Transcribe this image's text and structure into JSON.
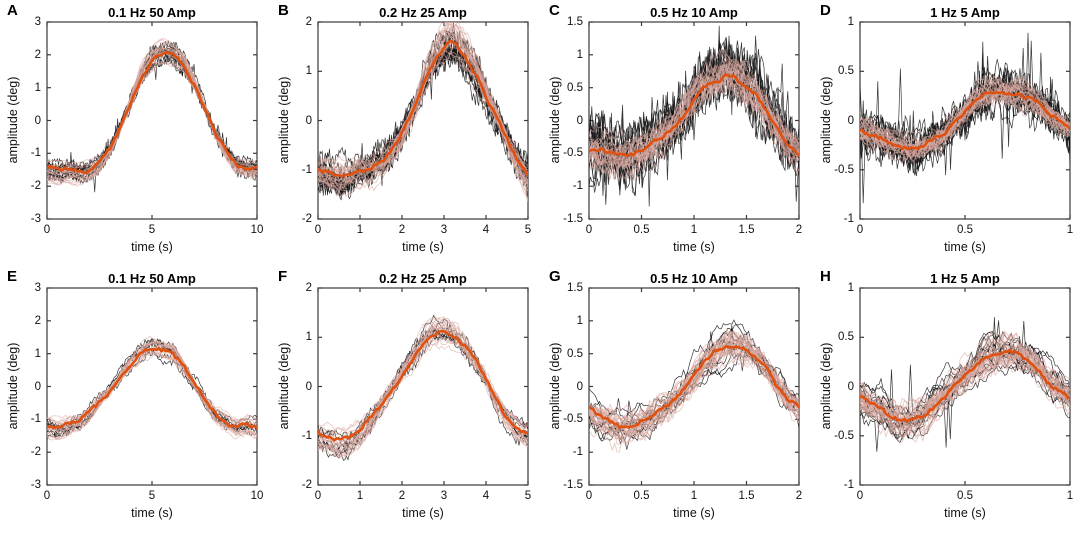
{
  "figure": {
    "background": "#ffffff",
    "rows": 2,
    "cols": 4
  },
  "colors": {
    "mean_line": "#e0500f",
    "band_trace": "#d9a8a0",
    "trial_trace": "#141414",
    "axis": "#3a3a3a",
    "tick_text": "#111111"
  },
  "chart_data": [
    {
      "type": "line",
      "panel": "A",
      "title": "0.1 Hz 50 Amp",
      "xlabel": "time (s)",
      "ylabel": "amplitude (deg)",
      "xlim": [
        0,
        10
      ],
      "ylim": [
        -3,
        3
      ],
      "xticks": [
        0,
        5,
        10
      ],
      "yticks": [
        -3,
        -2,
        -1,
        0,
        1,
        2,
        3
      ],
      "legend": null,
      "grid": false,
      "mean": {
        "t": [
          0,
          0.5,
          1,
          1.5,
          2,
          2.5,
          3,
          3.5,
          4,
          4.5,
          5,
          5.5,
          6,
          6.5,
          7,
          7.5,
          8,
          8.5,
          9,
          9.5,
          10
        ],
        "y": [
          -1.5,
          -1.55,
          -1.5,
          -1.55,
          -1.5,
          -1.3,
          -0.85,
          -0.2,
          0.6,
          1.35,
          1.8,
          2.0,
          1.95,
          1.7,
          1.1,
          0.4,
          -0.4,
          -0.9,
          -1.3,
          -1.4,
          -1.45
        ]
      },
      "trials": {
        "n_black": 10,
        "black_sd": 0.12,
        "jag": 1.0,
        "npts": 220,
        "spike_prob": 0.02,
        "spike_amp": 0.45,
        "n_pink": 20,
        "pink_sd": 0.09
      }
    },
    {
      "type": "line",
      "panel": "B",
      "title": "0.2 Hz 25 Amp",
      "xlabel": "time (s)",
      "ylabel": "amplitude (deg)",
      "xlim": [
        0,
        5
      ],
      "ylim": [
        -2,
        2
      ],
      "xticks": [
        0,
        1,
        2,
        3,
        4,
        5
      ],
      "yticks": [
        -2,
        -1,
        0,
        1,
        2
      ],
      "legend": null,
      "grid": false,
      "mean": {
        "t": [
          0,
          0.25,
          0.5,
          0.75,
          1,
          1.25,
          1.5,
          1.75,
          2,
          2.25,
          2.5,
          2.75,
          3,
          3.1,
          3.25,
          3.5,
          3.75,
          4,
          4.25,
          4.5,
          4.75,
          5
        ],
        "y": [
          -1.0,
          -1.05,
          -1.1,
          -1.1,
          -1.0,
          -0.95,
          -0.85,
          -0.6,
          -0.3,
          0.15,
          0.7,
          1.2,
          1.5,
          1.6,
          1.55,
          1.3,
          0.95,
          0.5,
          0.1,
          -0.4,
          -0.8,
          -1.15
        ]
      },
      "trials": {
        "n_black": 12,
        "black_sd": 0.22,
        "jag": 0.9,
        "npts": 200,
        "spike_prob": 0.01,
        "spike_amp": 0.4,
        "n_pink": 25,
        "pink_sd": 0.16
      }
    },
    {
      "type": "line",
      "panel": "C",
      "title": "0.5 Hz 10 Amp",
      "xlabel": "time (s)",
      "ylabel": "amplitude (deg)",
      "xlim": [
        0,
        2
      ],
      "ylim": [
        -1.5,
        1.5
      ],
      "xticks": [
        0,
        0.5,
        1,
        1.5,
        2
      ],
      "yticks": [
        -1.5,
        -1,
        -0.5,
        0,
        0.5,
        1,
        1.5
      ],
      "legend": null,
      "grid": false,
      "mean": {
        "t": [
          0,
          0.2,
          0.35,
          0.5,
          0.65,
          0.8,
          0.95,
          1.05,
          1.15,
          1.25,
          1.3,
          1.4,
          1.5,
          1.6,
          1.7,
          1.8,
          1.9,
          2
        ],
        "y": [
          -0.45,
          -0.5,
          -0.55,
          -0.45,
          -0.3,
          -0.1,
          0.2,
          0.45,
          0.55,
          0.6,
          0.7,
          0.65,
          0.5,
          0.35,
          0.1,
          -0.15,
          -0.35,
          -0.5
        ]
      },
      "trials": {
        "n_black": 12,
        "black_sd": 0.3,
        "jag": 1.0,
        "npts": 150,
        "spike_prob": 0.04,
        "spike_amp": 0.6,
        "n_pink": 26,
        "pink_sd": 0.2
      }
    },
    {
      "type": "line",
      "panel": "D",
      "title": "1 Hz 5 Amp",
      "xlabel": "time (s)",
      "ylabel": "amplitude (deg)",
      "xlim": [
        0,
        1
      ],
      "ylim": [
        -1,
        1
      ],
      "xticks": [
        0,
        0.5,
        1
      ],
      "yticks": [
        -1,
        -0.5,
        0,
        0.5,
        1
      ],
      "legend": null,
      "grid": false,
      "mean": {
        "t": [
          0,
          0.1,
          0.2,
          0.25,
          0.3,
          0.4,
          0.45,
          0.5,
          0.55,
          0.6,
          0.65,
          0.7,
          0.75,
          0.8,
          0.85,
          0.9,
          0.95,
          1
        ],
        "y": [
          -0.08,
          -0.18,
          -0.28,
          -0.3,
          -0.28,
          -0.15,
          -0.02,
          0.1,
          0.22,
          0.28,
          0.3,
          0.28,
          0.28,
          0.22,
          0.15,
          0.05,
          -0.02,
          -0.08
        ]
      },
      "trials": {
        "n_black": 14,
        "black_sd": 0.14,
        "jag": 1.0,
        "npts": 130,
        "spike_prob": 0.015,
        "spike_amp": 0.6,
        "n_pink": 26,
        "pink_sd": 0.09
      }
    },
    {
      "type": "line",
      "panel": "E",
      "title": "0.1 Hz 50 Amp",
      "xlabel": "time (s)",
      "ylabel": "amplitude (deg)",
      "xlim": [
        0,
        10
      ],
      "ylim": [
        -3,
        3
      ],
      "xticks": [
        0,
        5,
        10
      ],
      "yticks": [
        -3,
        -2,
        -1,
        0,
        1,
        2,
        3
      ],
      "legend": null,
      "grid": false,
      "mean": {
        "t": [
          0,
          0.5,
          1,
          1.5,
          2,
          2.5,
          3,
          3.5,
          4,
          4.5,
          5,
          5.5,
          6,
          6.5,
          7,
          7.5,
          8,
          8.5,
          9,
          9.5,
          10
        ],
        "y": [
          -1.2,
          -1.25,
          -1.15,
          -1.05,
          -0.8,
          -0.45,
          -0.1,
          0.3,
          0.7,
          1.0,
          1.15,
          1.1,
          1.0,
          0.6,
          0.1,
          -0.4,
          -0.8,
          -1.05,
          -1.2,
          -1.15,
          -1.25
        ]
      },
      "trials": {
        "n_black": 7,
        "black_sd": 0.18,
        "jag": 0.5,
        "npts": 150,
        "spike_prob": 0,
        "spike_amp": 0,
        "n_pink": 18,
        "pink_sd": 0.11
      }
    },
    {
      "type": "line",
      "panel": "F",
      "title": "0.2 Hz 25 Amp",
      "xlabel": "time (s)",
      "ylabel": "amplitude (deg)",
      "xlim": [
        0,
        5
      ],
      "ylim": [
        -2,
        2
      ],
      "xticks": [
        0,
        1,
        2,
        3,
        4,
        5
      ],
      "yticks": [
        -2,
        -1,
        0,
        1,
        2
      ],
      "legend": null,
      "grid": false,
      "mean": {
        "t": [
          0,
          0.25,
          0.5,
          0.75,
          1,
          1.25,
          1.5,
          1.75,
          2,
          2.25,
          2.5,
          2.75,
          3,
          3.25,
          3.5,
          3.75,
          4,
          4.25,
          4.5,
          4.75,
          5
        ],
        "y": [
          -1.0,
          -1.05,
          -1.1,
          -1.05,
          -0.9,
          -0.65,
          -0.35,
          -0.05,
          0.25,
          0.55,
          0.85,
          1.05,
          1.1,
          1.0,
          0.8,
          0.5,
          0.15,
          -0.25,
          -0.6,
          -0.85,
          -0.95
        ]
      },
      "trials": {
        "n_black": 7,
        "black_sd": 0.18,
        "jag": 0.5,
        "npts": 140,
        "spike_prob": 0,
        "spike_amp": 0,
        "n_pink": 20,
        "pink_sd": 0.12
      }
    },
    {
      "type": "line",
      "panel": "G",
      "title": "0.5 Hz 10 Amp",
      "xlabel": "time (s)",
      "ylabel": "amplitude (deg)",
      "xlim": [
        0,
        2
      ],
      "ylim": [
        -1.5,
        1.5
      ],
      "xticks": [
        0,
        0.5,
        1,
        1.5,
        2
      ],
      "yticks": [
        -1.5,
        -1,
        -0.5,
        0,
        0.5,
        1,
        1.5
      ],
      "legend": null,
      "grid": false,
      "mean": {
        "t": [
          0,
          0.15,
          0.3,
          0.45,
          0.6,
          0.75,
          0.9,
          1,
          1.1,
          1.2,
          1.3,
          1.4,
          1.5,
          1.6,
          1.7,
          1.8,
          1.9,
          2
        ],
        "y": [
          -0.35,
          -0.5,
          -0.58,
          -0.55,
          -0.45,
          -0.3,
          -0.05,
          0.15,
          0.35,
          0.5,
          0.62,
          0.65,
          0.6,
          0.45,
          0.25,
          0,
          -0.2,
          -0.3
        ]
      },
      "trials": {
        "n_black": 12,
        "black_sd": 0.2,
        "jag": 0.3,
        "npts": 100,
        "spike_prob": 0.008,
        "spike_amp": 0.35,
        "n_pink": 26,
        "pink_sd": 0.14
      }
    },
    {
      "type": "line",
      "panel": "H",
      "title": "1 Hz 5 Amp",
      "xlabel": "time (s)",
      "ylabel": "amplitude (deg)",
      "xlim": [
        0,
        1
      ],
      "ylim": [
        -1,
        1
      ],
      "xticks": [
        0,
        0.5,
        1
      ],
      "yticks": [
        -1,
        -0.5,
        0,
        0.5,
        1
      ],
      "legend": null,
      "grid": false,
      "mean": {
        "t": [
          0,
          0.08,
          0.15,
          0.2,
          0.25,
          0.3,
          0.35,
          0.4,
          0.45,
          0.5,
          0.55,
          0.6,
          0.65,
          0.7,
          0.75,
          0.8,
          0.85,
          0.9,
          0.95,
          1
        ],
        "y": [
          -0.12,
          -0.2,
          -0.3,
          -0.35,
          -0.33,
          -0.28,
          -0.2,
          -0.1,
          0,
          0.1,
          0.2,
          0.28,
          0.33,
          0.35,
          0.33,
          0.28,
          0.18,
          0.05,
          -0.05,
          -0.12
        ]
      },
      "trials": {
        "n_black": 16,
        "black_sd": 0.15,
        "jag": 0.3,
        "npts": 100,
        "spike_prob": 0.006,
        "spike_amp": 0.5,
        "n_pink": 26,
        "pink_sd": 0.11
      }
    }
  ]
}
